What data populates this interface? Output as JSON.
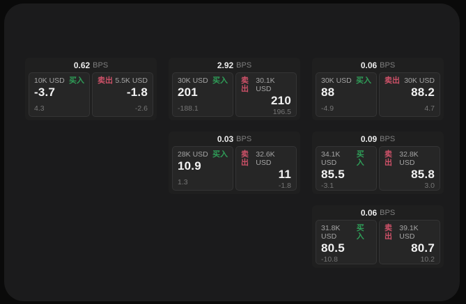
{
  "theme": {
    "bg-outer": "#0a0a0a",
    "bg-panel": "#1b1b1c",
    "bg-card": "#1f1f1f",
    "bg-tile": "#262626",
    "buy-green": "#2f9e58",
    "sell-pink": "#cd5168"
  },
  "labels": {
    "bps_unit": "BPS",
    "buy": "买入",
    "sell": "卖出"
  },
  "cards": [
    {
      "grid": {
        "col": 1,
        "row": 1
      },
      "bps": "0.62",
      "buy": {
        "amount": "10K USD",
        "value": "-3.7",
        "delta": "4.3"
      },
      "sell": {
        "amount": "5.5K USD",
        "value": "-1.8",
        "delta": "-2.6"
      }
    },
    {
      "grid": {
        "col": 2,
        "row": 1
      },
      "bps": "2.92",
      "buy": {
        "amount": "30K USD",
        "value": "201",
        "delta": "-188.1"
      },
      "sell": {
        "amount": "30.1K USD",
        "value": "210",
        "delta": "196.5"
      }
    },
    {
      "grid": {
        "col": 3,
        "row": 1
      },
      "bps": "0.06",
      "buy": {
        "amount": "30K USD",
        "value": "88",
        "delta": "-4.9"
      },
      "sell": {
        "amount": "30K USD",
        "value": "88.2",
        "delta": "4.7"
      }
    },
    {
      "grid": {
        "col": 2,
        "row": 2
      },
      "bps": "0.03",
      "buy": {
        "amount": "28K USD",
        "value": "10.9",
        "delta": "1.3"
      },
      "sell": {
        "amount": "32.6K USD",
        "value": "11",
        "delta": "-1.8"
      }
    },
    {
      "grid": {
        "col": 3,
        "row": 2
      },
      "bps": "0.09",
      "buy": {
        "amount": "34.1K USD",
        "value": "85.5",
        "delta": "-3.1"
      },
      "sell": {
        "amount": "32.8K USD",
        "value": "85.8",
        "delta": "3.0"
      }
    },
    {
      "grid": {
        "col": 3,
        "row": 3
      },
      "bps": "0.06",
      "buy": {
        "amount": "31.8K USD",
        "value": "80.5",
        "delta": "-10.8"
      },
      "sell": {
        "amount": "39.1K USD",
        "value": "80.7",
        "delta": "10.2"
      }
    }
  ]
}
